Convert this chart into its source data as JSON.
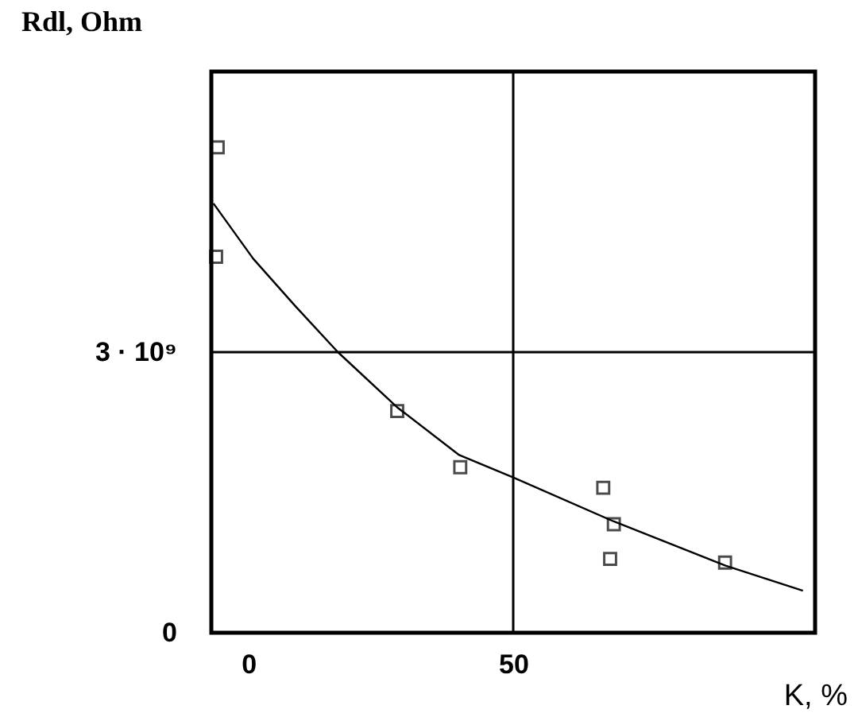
{
  "chart_data": {
    "type": "scatter",
    "xlabel": "K, %",
    "ylabel": "Rdl, Ohm",
    "xlim": [
      -7,
      107
    ],
    "ylim": [
      0,
      6000000000
    ],
    "xticks": [
      0,
      50
    ],
    "yticks": [
      0,
      {
        "value": 3000000000,
        "label": "3 · 10⁹"
      }
    ],
    "grid": false,
    "marker": "square",
    "ref_lines": [
      {
        "axis": "x",
        "value": 50,
        "color": "#000000"
      },
      {
        "axis": "y",
        "value": 3000000000,
        "color": "#000000"
      }
    ],
    "series": [
      {
        "color": "#000000",
        "x": [
          -5.8,
          -6.1,
          28.1,
          40.0,
          67.0,
          69.0,
          68.3,
          90.0
        ],
        "values": [
          5190000000,
          4020000000,
          2370000000,
          1770000000,
          1550000000,
          1160000000,
          790000000,
          750000000
        ]
      },
      {
        "type": "line",
        "color": "#000000",
        "marker": "none",
        "x": [
          -6.6,
          0.9,
          8.9,
          16.9,
          28.1,
          39.8,
          50,
          69,
          90,
          104.7
        ],
        "values": [
          4590000000,
          4000000000,
          3490000000,
          3000000000,
          2410000000,
          1900000000,
          1660000000,
          1190000000,
          720000000,
          450000000
        ]
      }
    ]
  }
}
